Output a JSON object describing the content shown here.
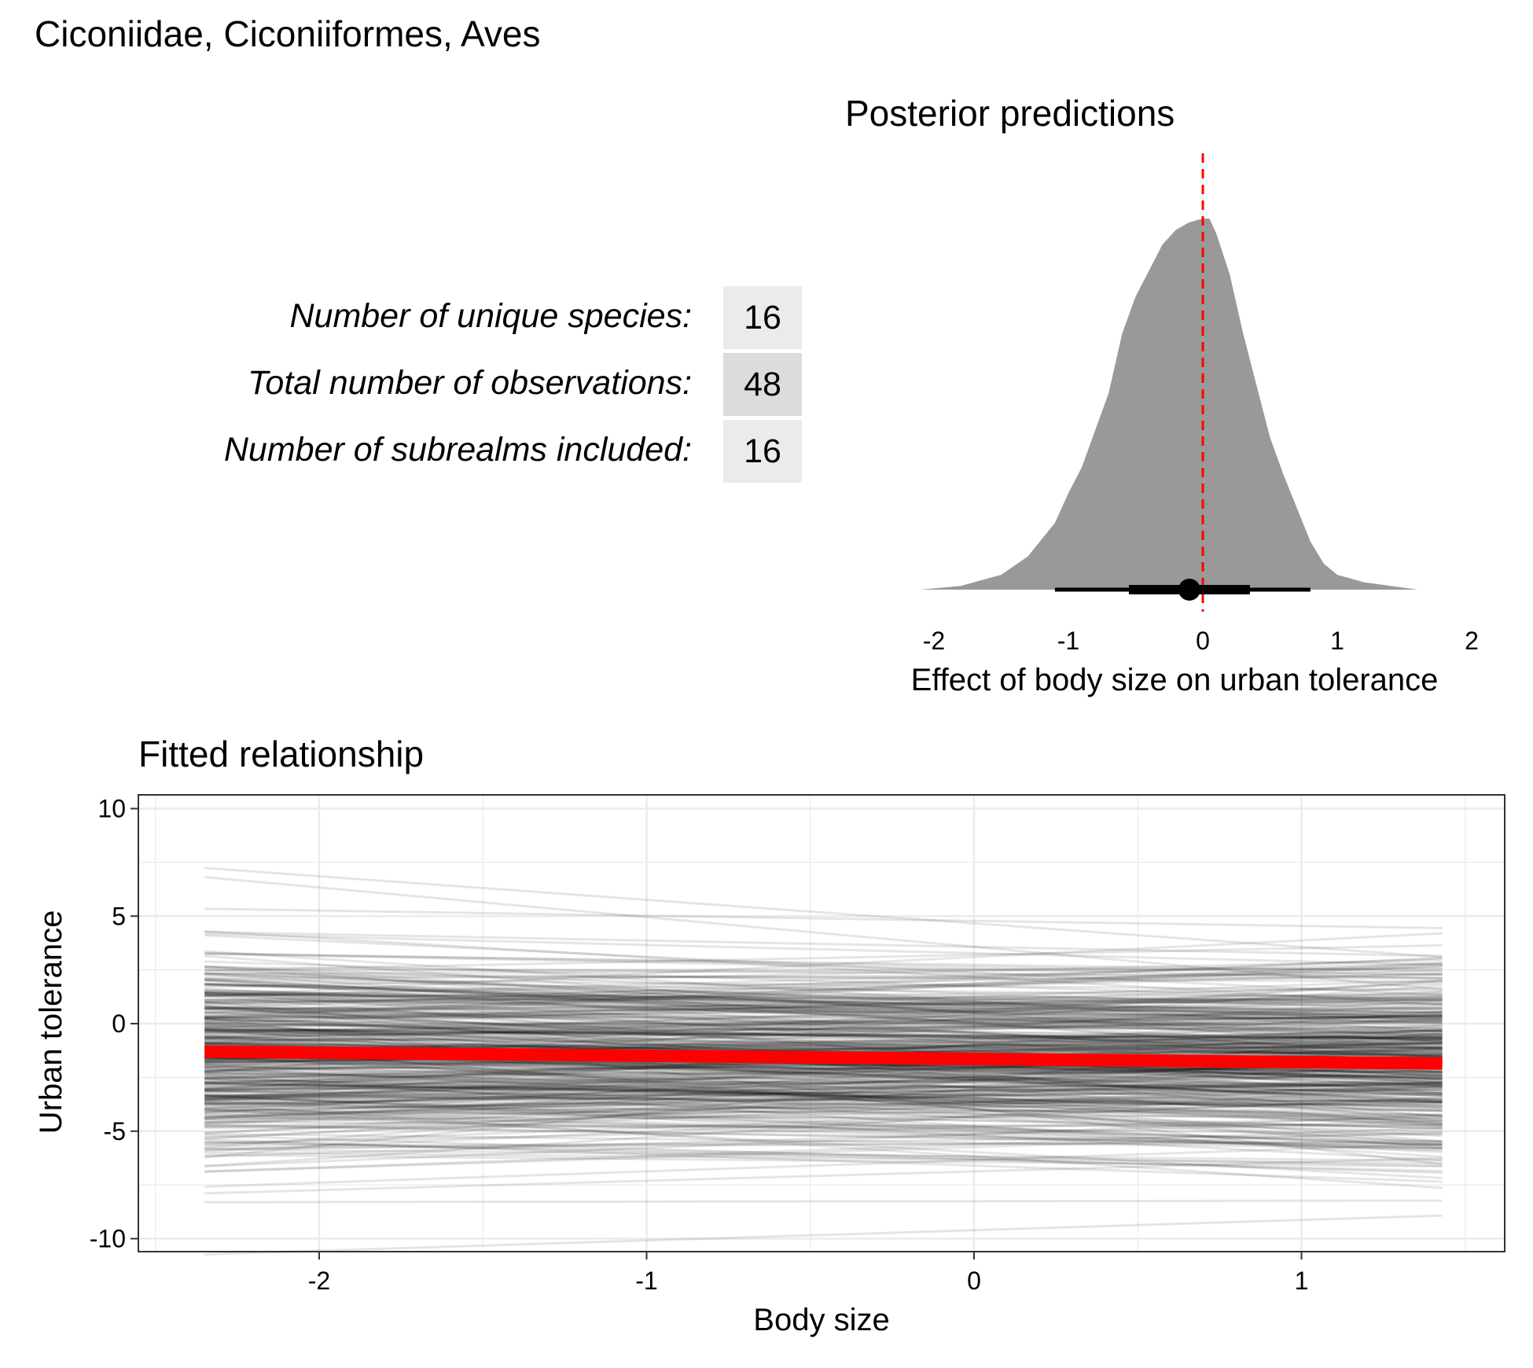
{
  "figure_title": "Ciconiidae, Ciconiiformes, Aves",
  "stats_table": [
    {
      "label": "Number of unique species:",
      "value": "16"
    },
    {
      "label": "Total number of observations:",
      "value": "48"
    },
    {
      "label": "Number of subrealms included:",
      "value": "16"
    }
  ],
  "colors": {
    "posterior_fill": "#999999",
    "reference_line": "#ff0000",
    "fitted_line": "#ff0000",
    "draw_lines": "#000000",
    "grid": "#ebebeb"
  },
  "chart_data": [
    {
      "type": "area",
      "title": "Posterior predictions",
      "xlabel": "Effect of body size on urban tolerance",
      "ylabel": "",
      "xlim": [
        -2.05,
        2.05
      ],
      "x_ticks": [
        "-2",
        "-1",
        "0",
        "1",
        "2"
      ],
      "x_tick_values": [
        -2,
        -1,
        0,
        1,
        2
      ],
      "y_axis_shown": false,
      "grid": false,
      "density_x": [
        -2.1,
        -1.8,
        -1.5,
        -1.3,
        -1.1,
        -1.0,
        -0.9,
        -0.8,
        -0.7,
        -0.6,
        -0.5,
        -0.4,
        -0.3,
        -0.2,
        -0.1,
        0.0,
        0.05,
        0.1,
        0.2,
        0.3,
        0.4,
        0.5,
        0.6,
        0.7,
        0.8,
        0.9,
        1.0,
        1.2,
        1.4,
        1.6
      ],
      "density_y": [
        0.0,
        0.01,
        0.04,
        0.09,
        0.18,
        0.26,
        0.33,
        0.43,
        0.53,
        0.69,
        0.79,
        0.86,
        0.93,
        0.97,
        0.99,
        1.0,
        1.0,
        0.96,
        0.85,
        0.69,
        0.55,
        0.41,
        0.31,
        0.22,
        0.13,
        0.07,
        0.04,
        0.02,
        0.01,
        0.0
      ],
      "reference_line_x": 0,
      "point_estimate": -0.1,
      "interval_inner": [
        -0.55,
        0.35
      ],
      "interval_outer": [
        -1.1,
        0.8
      ]
    },
    {
      "type": "line",
      "title": "Fitted relationship",
      "xlabel": "Body size",
      "ylabel": "Urban tolerance",
      "xlim": [
        -2.55,
        1.62
      ],
      "ylim": [
        -10.4,
        10.6
      ],
      "x_ticks": [
        "-2",
        "-1",
        "0",
        "1"
      ],
      "x_tick_values": [
        -2,
        -1,
        0,
        1
      ],
      "y_ticks": [
        "10",
        "5",
        "0",
        "-5",
        "-10"
      ],
      "y_tick_values": [
        10,
        5,
        0,
        -5,
        -10
      ],
      "grid": true,
      "x_range": [
        -2.35,
        1.43
      ],
      "fitted_line": {
        "x": [
          -2.35,
          1.43
        ],
        "y": [
          -1.3,
          -1.85
        ]
      },
      "posterior_draws": {
        "count": 400,
        "intercept_mean": -1.6,
        "intercept_sd": 2.3,
        "slope_mean": -0.1,
        "slope_sd": 0.5
      }
    }
  ]
}
